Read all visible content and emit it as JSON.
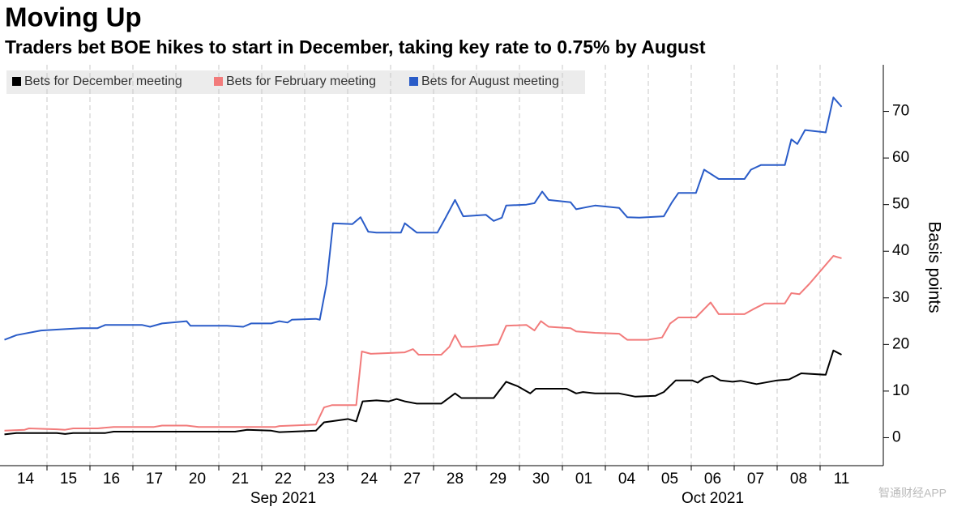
{
  "chart_data": {
    "type": "line",
    "title": "Moving Up",
    "subtitle": "Traders bet BOE hikes to start in December, taking key rate to 0.75% by August",
    "y_label": "Basis points",
    "xlim": [
      -0.5,
      19.5
    ],
    "xticks": [
      {
        "value": 0,
        "label": "14"
      },
      {
        "value": 1,
        "label": "15"
      },
      {
        "value": 2,
        "label": "16"
      },
      {
        "value": 3,
        "label": "17"
      },
      {
        "value": 4,
        "label": "20"
      },
      {
        "value": 5,
        "label": "21"
      },
      {
        "value": 6,
        "label": "22"
      },
      {
        "value": 7,
        "label": "23"
      },
      {
        "value": 8,
        "label": "24"
      },
      {
        "value": 9,
        "label": "27"
      },
      {
        "value": 10,
        "label": "28"
      },
      {
        "value": 11,
        "label": "29"
      },
      {
        "value": 12,
        "label": "30"
      },
      {
        "value": 13,
        "label": "01"
      },
      {
        "value": 14,
        "label": "04"
      },
      {
        "value": 15,
        "label": "05"
      },
      {
        "value": 16,
        "label": "06"
      },
      {
        "value": 17,
        "label": "07"
      },
      {
        "value": 18,
        "label": "08"
      },
      {
        "value": 19,
        "label": "11"
      }
    ],
    "month_labels": [
      {
        "value": 6,
        "label": "Sep 2021"
      },
      {
        "value": 16,
        "label": "Oct 2021"
      }
    ],
    "ylim": [
      -6,
      80
    ],
    "yticks": [
      0,
      10,
      20,
      30,
      40,
      50,
      60,
      70
    ],
    "grid": true,
    "legend": "top-left",
    "watermark": "智通财经APP",
    "series": [
      {
        "name": "Bets for December meeting",
        "color": "#000000",
        "x": [
          -0.49,
          -0.21,
          0.73,
          0.92,
          1.11,
          1.86,
          2.05,
          4.88,
          5.16,
          5.72,
          5.91,
          6.76,
          6.95,
          7.51,
          7.7,
          7.85,
          8.17,
          8.46,
          8.64,
          8.83,
          9.11,
          9.68,
          10.0,
          10.15,
          10.9,
          11.19,
          11.47,
          11.75,
          11.88,
          12.6,
          12.82,
          12.98,
          13.26,
          13.82,
          14.2,
          14.67,
          14.86,
          15.14,
          15.52,
          15.65,
          15.8,
          15.99,
          16.18,
          16.46,
          16.65,
          17.02,
          17.5,
          17.78,
          18.06,
          18.63,
          18.81,
          19.0
        ],
        "values": [
          0.7,
          1,
          1,
          0.8,
          1,
          1,
          1.3,
          1.3,
          1.7,
          1.5,
          1.2,
          1.5,
          3.3,
          4,
          3.5,
          7.8,
          8,
          7.8,
          8.3,
          7.8,
          7.3,
          7.3,
          9.5,
          8.5,
          8.5,
          12,
          11,
          9.5,
          10.5,
          10.5,
          9.5,
          9.8,
          9.5,
          9.5,
          8.8,
          9,
          9.8,
          12.3,
          12.3,
          11.8,
          12.8,
          13.3,
          12.3,
          12,
          12.2,
          11.5,
          12.3,
          12.5,
          13.8,
          13.5,
          18.7,
          17.8
        ]
      },
      {
        "name": "Bets for February meeting",
        "color": "#f27b7b",
        "x": [
          -0.49,
          -0.02,
          0.08,
          0.73,
          0.92,
          1.11,
          1.68,
          2.05,
          2.99,
          3.18,
          3.75,
          4.03,
          5.82,
          5.91,
          6.76,
          6.95,
          7.14,
          7.7,
          7.83,
          8.04,
          8.83,
          9.02,
          9.15,
          9.68,
          9.87,
          10.0,
          10.15,
          10.34,
          11.0,
          11.19,
          11.66,
          11.85,
          12.0,
          12.18,
          12.69,
          12.82,
          13.26,
          13.82,
          14.01,
          14.48,
          14.82,
          15.01,
          15.2,
          15.61,
          15.95,
          16.14,
          16.74,
          16.93,
          17.21,
          17.68,
          17.83,
          18.02,
          18.25,
          18.81,
          19.0
        ],
        "values": [
          1.5,
          1.7,
          2,
          1.8,
          1.7,
          2,
          2,
          2.3,
          2.3,
          2.6,
          2.6,
          2.3,
          2.3,
          2.5,
          2.8,
          6.5,
          7,
          7,
          18.5,
          18,
          18.3,
          19,
          17.8,
          17.8,
          19.5,
          22,
          19.5,
          19.5,
          20,
          24,
          24.2,
          23,
          25,
          23.8,
          23.5,
          22.8,
          22.5,
          22.3,
          21,
          21,
          21.5,
          24.5,
          25.8,
          25.8,
          29,
          26.5,
          26.5,
          27.5,
          28.8,
          28.8,
          31,
          30.8,
          33,
          39,
          38.5
        ]
      },
      {
        "name": "Bets for August meeting",
        "color": "#2a5cc8",
        "x": [
          -0.49,
          -0.21,
          0.36,
          0.92,
          1.3,
          1.68,
          1.86,
          2.71,
          2.9,
          3.18,
          3.75,
          3.84,
          4.69,
          5.07,
          5.25,
          5.72,
          5.91,
          6.1,
          6.2,
          6.76,
          6.85,
          7.01,
          7.16,
          7.61,
          7.8,
          7.98,
          8.17,
          8.74,
          8.83,
          9.11,
          9.59,
          9.77,
          10.0,
          10.19,
          10.72,
          10.9,
          11.09,
          11.19,
          11.66,
          11.85,
          12.03,
          12.18,
          12.69,
          12.82,
          12.98,
          13.26,
          13.82,
          14.01,
          14.29,
          14.86,
          15.05,
          15.2,
          15.61,
          15.8,
          16.14,
          16.74,
          16.89,
          17.12,
          17.68,
          17.83,
          17.97,
          18.15,
          18.63,
          18.81,
          19.0
        ],
        "values": [
          21,
          22,
          23,
          23.3,
          23.5,
          23.5,
          24.2,
          24.2,
          23.8,
          24.5,
          25,
          24,
          24,
          23.8,
          24.5,
          24.5,
          25,
          24.7,
          25.3,
          25.5,
          25.3,
          33,
          46,
          45.8,
          47.3,
          44.2,
          44,
          44,
          46,
          44,
          44,
          47,
          51,
          47.5,
          47.8,
          46.5,
          47.2,
          49.8,
          50,
          50.3,
          52.8,
          51,
          50.5,
          49,
          49.3,
          49.8,
          49.3,
          47.3,
          47.2,
          47.5,
          50.5,
          52.5,
          52.5,
          57.5,
          55.5,
          55.5,
          57.5,
          58.5,
          58.5,
          64,
          63,
          66,
          65.5,
          73,
          71
        ]
      }
    ]
  }
}
